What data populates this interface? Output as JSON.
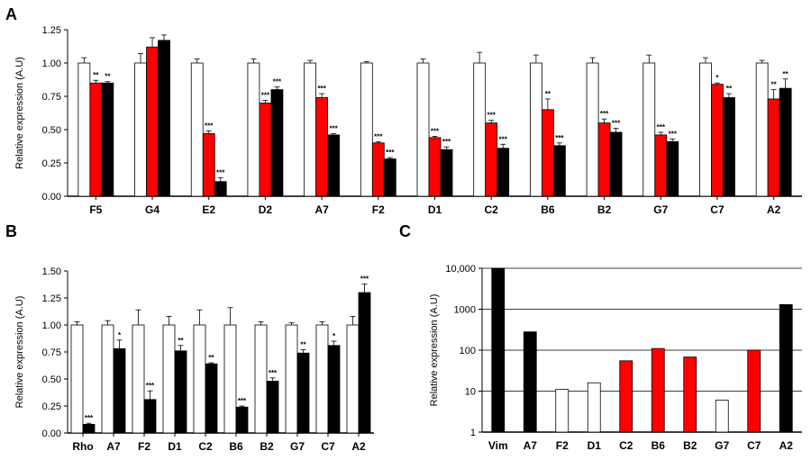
{
  "colors": {
    "control": "#ffffff",
    "red": "#ff0000",
    "black": "#000000",
    "axis": "#000000"
  },
  "chart_data": [
    {
      "panel": "A",
      "type": "bar",
      "ylabel": "Relative expression (A.U)",
      "ylim": [
        0,
        1.25
      ],
      "yticks": [
        "0.00",
        "0.25",
        "0.50",
        "0.75",
        "1.00",
        "1.25"
      ],
      "ytick_values": [
        0,
        0.25,
        0.5,
        0.75,
        1.0,
        1.25
      ],
      "categories": [
        "F5",
        "G4",
        "E2",
        "D2",
        "A7",
        "F2",
        "D1",
        "C2",
        "B6",
        "B2",
        "G7",
        "C7",
        "A2"
      ],
      "series": [
        {
          "name": "control",
          "color": "#ffffff",
          "values": [
            1.0,
            1.0,
            1.0,
            1.0,
            1.0,
            1.0,
            1.0,
            1.0,
            1.0,
            1.0,
            1.0,
            1.0,
            1.0
          ],
          "errors": [
            0.04,
            0.07,
            0.03,
            0.03,
            0.02,
            0.01,
            0.03,
            0.08,
            0.06,
            0.04,
            0.06,
            0.04,
            0.02
          ],
          "sig": [
            "",
            "",
            "",
            "",
            "",
            "",
            "",
            "",
            "",
            "",
            "",
            "",
            ""
          ]
        },
        {
          "name": "red",
          "color": "#ff0000",
          "values": [
            0.85,
            1.12,
            0.47,
            0.7,
            0.74,
            0.4,
            0.44,
            0.55,
            0.65,
            0.55,
            0.46,
            0.84,
            0.73
          ],
          "errors": [
            0.02,
            0.07,
            0.02,
            0.02,
            0.03,
            0.01,
            0.01,
            0.02,
            0.08,
            0.03,
            0.02,
            0.01,
            0.07
          ],
          "sig": [
            "**",
            "",
            "***",
            "***",
            "***",
            "***",
            "***",
            "***",
            "**",
            "***",
            "***",
            "*",
            "**"
          ]
        },
        {
          "name": "black",
          "color": "#000000",
          "values": [
            0.85,
            1.17,
            0.11,
            0.8,
            0.46,
            0.28,
            0.35,
            0.36,
            0.38,
            0.48,
            0.41,
            0.74,
            0.81
          ],
          "errors": [
            0.01,
            0.04,
            0.03,
            0.02,
            0.01,
            0.01,
            0.02,
            0.03,
            0.02,
            0.03,
            0.02,
            0.03,
            0.07
          ],
          "sig": [
            "**",
            "",
            "***",
            "***",
            "***",
            "***",
            "***",
            "***",
            "***",
            "***",
            "***",
            "**",
            "**"
          ]
        }
      ]
    },
    {
      "panel": "B",
      "type": "bar",
      "ylabel": "Relative expression (A.U)",
      "ylim": [
        0,
        1.5
      ],
      "yticks": [
        "0.00",
        "0.25",
        "0.50",
        "0.75",
        "1.00",
        "1.25",
        "1.50"
      ],
      "ytick_values": [
        0,
        0.25,
        0.5,
        0.75,
        1.0,
        1.25,
        1.5
      ],
      "categories": [
        "Rho",
        "A7",
        "F2",
        "D1",
        "C2",
        "B6",
        "B2",
        "G7",
        "C7",
        "A2"
      ],
      "series": [
        {
          "name": "control",
          "color": "#ffffff",
          "values": [
            1.0,
            1.0,
            1.0,
            1.0,
            1.0,
            1.0,
            1.0,
            1.0,
            1.0,
            1.0
          ],
          "errors": [
            0.03,
            0.04,
            0.14,
            0.08,
            0.14,
            0.16,
            0.03,
            0.02,
            0.03,
            0.08
          ],
          "sig": [
            "",
            "",
            "",
            "",
            "",
            "",
            "",
            "",
            "",
            ""
          ]
        },
        {
          "name": "black",
          "color": "#000000",
          "values": [
            0.08,
            0.78,
            0.31,
            0.76,
            0.64,
            0.24,
            0.48,
            0.74,
            0.81,
            1.3
          ],
          "errors": [
            0.01,
            0.08,
            0.08,
            0.05,
            0.01,
            0.01,
            0.03,
            0.03,
            0.04,
            0.08
          ],
          "sig": [
            "***",
            "*",
            "***",
            "**",
            "**",
            "***",
            "***",
            "**",
            "*",
            "***"
          ]
        }
      ]
    },
    {
      "panel": "C",
      "type": "bar",
      "scale": "log",
      "ylabel": "Relative expression (A.U)",
      "ylim": [
        1,
        10000
      ],
      "yticks": [
        "1",
        "10",
        "100",
        "1000",
        "10,000"
      ],
      "ytick_values": [
        1,
        10,
        100,
        1000,
        10000
      ],
      "grid": true,
      "categories": [
        "Vim",
        "A7",
        "F2",
        "D1",
        "C2",
        "B6",
        "B2",
        "G7",
        "C7",
        "A2"
      ],
      "values": [
        10000,
        280,
        11,
        16,
        55,
        110,
        68,
        6,
        100,
        1300
      ],
      "bar_colors": [
        "#000000",
        "#000000",
        "#ffffff",
        "#ffffff",
        "#ff0000",
        "#ff0000",
        "#ff0000",
        "#ffffff",
        "#ff0000",
        "#000000"
      ]
    }
  ]
}
